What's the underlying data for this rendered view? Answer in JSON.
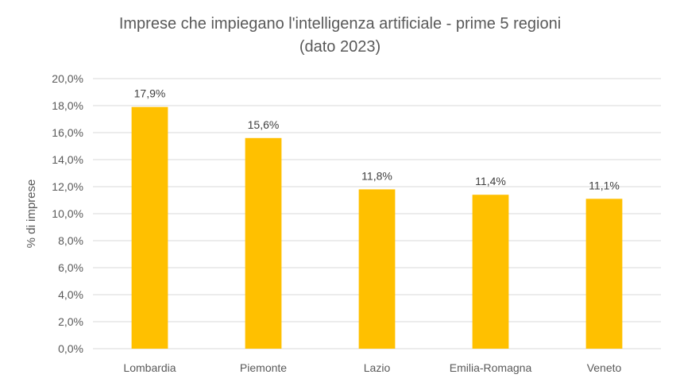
{
  "chart_data": {
    "type": "bar",
    "title_lines": [
      "Imprese che impiegano l'intelligenza artificiale - prime 5 regioni",
      "(dato 2023)"
    ],
    "xlabel": "",
    "ylabel": "% di imprese",
    "categories": [
      "Lombardia",
      "Piemonte",
      "Lazio",
      "Emilia-Romagna",
      "Veneto"
    ],
    "values": [
      17.9,
      15.6,
      11.8,
      11.4,
      11.1
    ],
    "data_labels": [
      "17,9%",
      "15,6%",
      "11,8%",
      "11,4%",
      "11,1%"
    ],
    "ylim": [
      0,
      20
    ],
    "yticks": [
      0,
      2,
      4,
      6,
      8,
      10,
      12,
      14,
      16,
      18,
      20
    ],
    "ytick_labels": [
      "0,0%",
      "2,0%",
      "4,0%",
      "6,0%",
      "8,0%",
      "10,0%",
      "12,0%",
      "14,0%",
      "16,0%",
      "18,0%",
      "20,0%"
    ],
    "grid": true,
    "legend": "none",
    "bar_color": "#FFC000",
    "grid_color": "#D9D9D9",
    "text_color": "#595959"
  }
}
